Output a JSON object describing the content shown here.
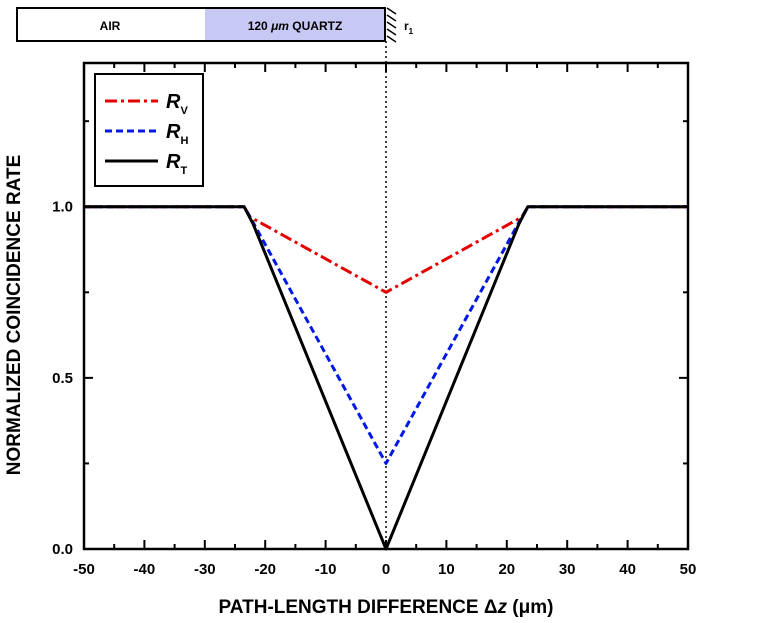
{
  "colors": {
    "background": "#ffffff",
    "axes": "#000000",
    "quartz_fill": "#c8c8f4",
    "R_V": "#e60000",
    "R_H": "#0019e6",
    "R_T": "#000000"
  },
  "schematic": {
    "air_label": "AIR",
    "quartz_label_prefix": "120 ",
    "quartz_label_mu": "μm",
    "quartz_label_suffix": " QUARTZ",
    "mirror_label": "r",
    "mirror_subscript": "1"
  },
  "chart_data": {
    "type": "line",
    "title": "",
    "xlabel": "PATH-LENGTH DIFFERENCE Δz (μm)",
    "xlabel_parts": {
      "main": "PATH-LENGTH DIFFERENCE ",
      "symbol": "Δ",
      "variable": "z",
      "unit": " (μm)"
    },
    "ylabel": "NORMALIZED COINCIDENCE RATE",
    "xlim": [
      -50,
      50
    ],
    "ylim": [
      0,
      1.42
    ],
    "xticks": [
      -50,
      -40,
      -30,
      -20,
      -10,
      0,
      10,
      20,
      30,
      40,
      50
    ],
    "xtick_labels": [
      "-50",
      "-40",
      "-30",
      "-20",
      "-10",
      "0",
      "10",
      "20",
      "30",
      "40",
      "50"
    ],
    "yticks": [
      0.0,
      0.5,
      1.0
    ],
    "ytick_labels": [
      "0.0",
      "0.5",
      "1.0"
    ],
    "vertical_reference_line": {
      "x": 0,
      "style": "dotted"
    },
    "legend": {
      "position": "top-left",
      "box": true
    },
    "series": [
      {
        "name": "R_V",
        "label_main": "R",
        "label_sub": "V",
        "style": "dash-dot",
        "color": "#e60000",
        "x": [
          -50,
          -24.5,
          -23.5,
          -22.5,
          0,
          22.5,
          23.5,
          24.5,
          50
        ],
        "y": [
          1.0,
          1.0,
          1.0,
          0.97,
          0.75,
          0.97,
          1.0,
          1.0,
          1.0
        ]
      },
      {
        "name": "R_H",
        "label_main": "R",
        "label_sub": "H",
        "style": "dashed",
        "color": "#0019e6",
        "x": [
          -50,
          -24.5,
          -23.5,
          -22.5,
          0,
          22.5,
          23.5,
          24.5,
          50
        ],
        "y": [
          1.0,
          1.0,
          1.0,
          0.97,
          0.25,
          0.97,
          1.0,
          1.0,
          1.0
        ]
      },
      {
        "name": "R_T",
        "label_main": "R",
        "label_sub": "T",
        "style": "solid",
        "color": "#000000",
        "x": [
          -50,
          -24.5,
          -23.5,
          -22.0,
          0,
          22.0,
          23.5,
          24.5,
          50
        ],
        "y": [
          1.0,
          1.0,
          1.0,
          0.95,
          0.0,
          0.95,
          1.0,
          1.0,
          1.0
        ]
      }
    ]
  }
}
